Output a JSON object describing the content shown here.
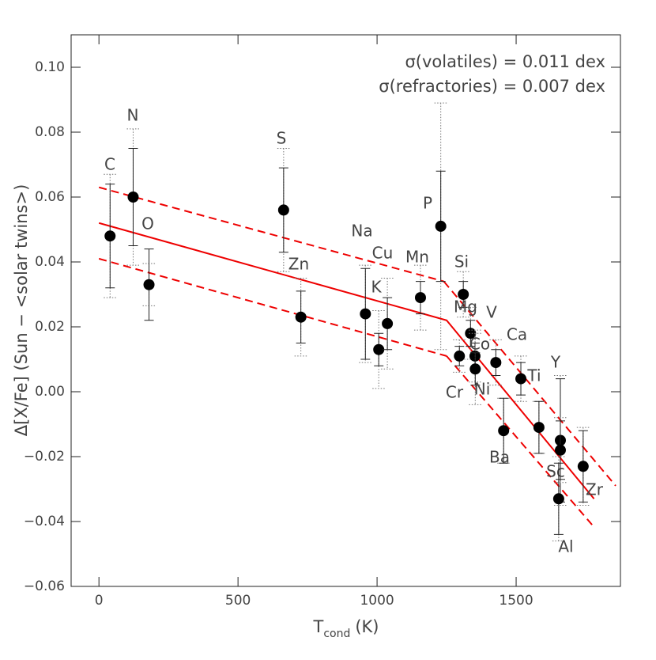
{
  "chart_data": {
    "type": "scatter",
    "x_label": {
      "main": "T",
      "sub": "cond",
      "unit": "(K)"
    },
    "y_label": "Δ[X/Fe] (Sun − <solar twins>)",
    "annotations": [
      "σ(volatiles) = 0.011 dex",
      "σ(refractories) = 0.007 dex"
    ],
    "xlim": [
      -100,
      1875
    ],
    "ylim": [
      -0.06,
      0.11
    ],
    "xticks": [
      0,
      500,
      1000,
      1500
    ],
    "yticks": [
      {
        "value": -0.06,
        "label": "−0.06"
      },
      {
        "value": -0.04,
        "label": "−0.04"
      },
      {
        "value": -0.02,
        "label": "−0.02"
      },
      {
        "value": 0,
        "label": "0.00"
      },
      {
        "value": 0.02,
        "label": "0.02"
      },
      {
        "value": 0.04,
        "label": "0.04"
      },
      {
        "value": 0.06,
        "label": "0.06"
      },
      {
        "value": 0.08,
        "label": "0.08"
      },
      {
        "value": 0.1,
        "label": "0.10"
      }
    ],
    "categories": [
      "C",
      "N",
      "O",
      "S",
      "Zn",
      "Na",
      "K",
      "Cu",
      "Mn",
      "P",
      "Si",
      "Cr",
      "Mg",
      "Co",
      "Ni",
      "V",
      "Ba",
      "Ca",
      "Ti",
      "Y",
      "Sc",
      "Al",
      "Zr"
    ],
    "x": [
      40,
      123,
      180,
      664,
      726,
      958,
      1006,
      1037,
      1156,
      1229,
      1310,
      1296,
      1336,
      1352,
      1353,
      1427,
      1455,
      1517,
      1582,
      1659,
      1659,
      1653,
      1741
    ],
    "values": [
      0.048,
      0.06,
      0.033,
      0.056,
      0.023,
      0.024,
      0.013,
      0.021,
      0.029,
      0.051,
      0.03,
      0.011,
      0.018,
      0.011,
      0.007,
      0.009,
      -0.012,
      0.004,
      -0.011,
      -0.015,
      -0.018,
      -0.033,
      -0.023
    ],
    "errors": [
      0.016,
      0.015,
      0.011,
      0.013,
      0.008,
      0.014,
      0.005,
      0.008,
      0.005,
      0.017,
      0.004,
      0.003,
      0.004,
      0.004,
      0.005,
      0.004,
      0.01,
      0.005,
      0.008,
      0.019,
      0.009,
      0.011,
      0.011
    ],
    "errors_total": [
      0.019,
      0.021,
      0.0065,
      0.019,
      0.012,
      0.015,
      0.012,
      0.014,
      0.01,
      0.038,
      0.007,
      0.005,
      0.008,
      0.008,
      0.011,
      0.007,
      0.01,
      0.007,
      0.008,
      0.02,
      0.01,
      0.013,
      0.012
    ],
    "color": "#000000",
    "fit_lines": [
      {
        "style": "solid",
        "color": "#ee0000",
        "x": [
          0,
          1250,
          1780
        ],
        "y": [
          0.052,
          0.022,
          -0.033
        ]
      },
      {
        "style": "dashed",
        "color": "#ee0000",
        "x": [
          0,
          1240
        ],
        "y": [
          0.063,
          0.034
        ]
      },
      {
        "style": "dashed",
        "color": "#ee0000",
        "x": [
          0,
          1250
        ],
        "y": [
          0.041,
          0.011
        ]
      },
      {
        "style": "dashed",
        "color": "#ee0000",
        "x": [
          1240,
          1858
        ],
        "y": [
          0.034,
          -0.029
        ]
      },
      {
        "style": "dashed",
        "color": "#ee0000",
        "x": [
          1250,
          1773
        ],
        "y": [
          0.011,
          -0.041
        ]
      }
    ]
  }
}
